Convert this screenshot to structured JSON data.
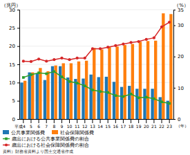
{
  "chart_data": {
    "type": "bar",
    "categories": [
      "平成4",
      "5",
      "6",
      "7",
      "8",
      "9",
      "10",
      "11",
      "12",
      "13",
      "14",
      "15",
      "16",
      "17",
      "18",
      "19",
      "20",
      "21",
      "22",
      "23"
    ],
    "series": [
      {
        "name": "公共事業関係費",
        "type": "bar",
        "values": [
          10.0,
          12.8,
          12.5,
          10.7,
          14.5,
          14.5,
          11.4,
          11.0,
          11.1,
          12.2,
          11.5,
          11.6,
          10.2,
          8.8,
          9.1,
          8.3,
          8.3,
          8.3,
          6.0,
          5.0
        ]
      },
      {
        "name": "社会保障関係費",
        "type": "bar",
        "values": [
          10.5,
          12.8,
          14.0,
          13.1,
          14.7,
          15.3,
          15.3,
          15.8,
          16.0,
          19.5,
          19.1,
          19.7,
          19.9,
          20.3,
          20.6,
          21.2,
          21.4,
          21.5,
          29.0,
          28.8
        ]
      },
      {
        "name": "歳出における公共事業関係費の割合",
        "type": "line",
        "marker": "square",
        "axis": "y2",
        "values": [
          13.3,
          14.2,
          14.8,
          14.5,
          15.2,
          13.5,
          12.0,
          11.5,
          10.6,
          9.3,
          8.8,
          8.5,
          7.5,
          7.2,
          8.0,
          6.8,
          7.0,
          6.5,
          5.5,
          5.0
        ]
      },
      {
        "name": "歳出における社会保障関係費の割合",
        "type": "line",
        "marker": "circle",
        "axis": "y2",
        "values": [
          18.5,
          18.4,
          19.2,
          18.5,
          19.0,
          19.5,
          19.0,
          19.5,
          19.5,
          22.5,
          22.5,
          23.0,
          23.5,
          24.0,
          24.5,
          24.8,
          25.5,
          26.0,
          29.5,
          31.0
        ]
      }
    ],
    "y_label": "（兆円）",
    "y2_label": "（%）",
    "x_label": "（年）",
    "annotations": [
      "資料）財務省資料より国土交通省作成"
    ],
    "ylim": [
      0,
      30
    ],
    "yticks": [
      0,
      5,
      10,
      15,
      20,
      25,
      30
    ],
    "y2lim": [
      0,
      35
    ],
    "y2ticks": [
      0,
      10,
      20,
      30,
      35
    ],
    "grid": true,
    "legend": "bottom"
  }
}
